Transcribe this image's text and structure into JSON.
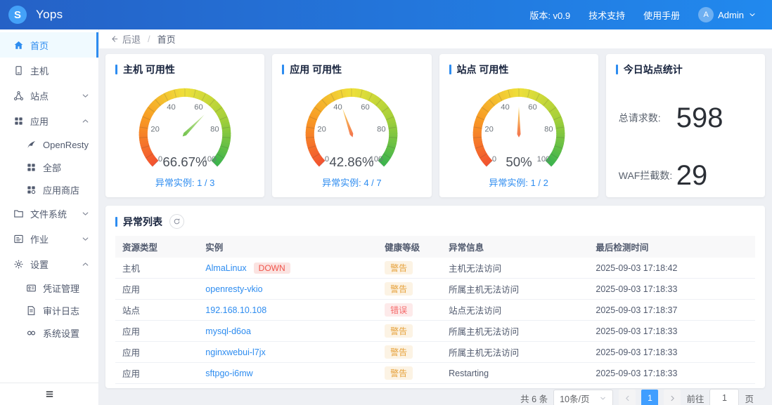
{
  "header": {
    "brand": "Yops",
    "logo_letter": "S",
    "version": "版本: v0.9",
    "support": "技术支持",
    "manual": "使用手册",
    "user": "Admin",
    "avatar_initial": "A",
    "accent_color": "#2d8cf0",
    "topbar_gradient": [
      "#2561c6",
      "#2189ee"
    ]
  },
  "breadcrumb": {
    "back": "后退",
    "separator": "/",
    "current": "首页"
  },
  "sidebar": {
    "items": [
      {
        "id": "home",
        "label": "首页",
        "icon": "home",
        "active": true
      },
      {
        "id": "hosts",
        "label": "主机",
        "icon": "host"
      },
      {
        "id": "sites",
        "label": "站点",
        "icon": "site",
        "expandable": true,
        "expanded": false
      },
      {
        "id": "apps",
        "label": "应用",
        "icon": "apps",
        "expandable": true,
        "expanded": true,
        "children": [
          {
            "id": "openresty",
            "label": "OpenResty",
            "icon": "openresty"
          },
          {
            "id": "apps-all",
            "label": "全部",
            "icon": "grid"
          },
          {
            "id": "app-store",
            "label": "应用商店",
            "icon": "store"
          }
        ]
      },
      {
        "id": "filesystem",
        "label": "文件系统",
        "icon": "files",
        "expandable": true,
        "expanded": false
      },
      {
        "id": "jobs",
        "label": "作业",
        "icon": "jobs",
        "expandable": true,
        "expanded": false
      },
      {
        "id": "settings",
        "label": "设置",
        "icon": "settings",
        "expandable": true,
        "expanded": true,
        "children": [
          {
            "id": "credentials",
            "label": "凭证管理",
            "icon": "credentials"
          },
          {
            "id": "audit-log",
            "label": "审计日志",
            "icon": "audit"
          },
          {
            "id": "system-settings",
            "label": "系统设置",
            "icon": "system"
          }
        ]
      }
    ]
  },
  "chart_data": [
    {
      "type": "gauge",
      "title": "主机 可用性",
      "value": 66.67,
      "display": "66.67%",
      "min": 0,
      "max": 100,
      "tick_labels": [
        0,
        20,
        40,
        60,
        80,
        100
      ],
      "band_gradient": [
        [
          "0",
          "#f25230"
        ],
        [
          "0.25",
          "#f89b24"
        ],
        [
          "0.5",
          "#efe03a"
        ],
        [
          "0.75",
          "#a6d039"
        ],
        [
          "1",
          "#3ab34e"
        ]
      ],
      "needle": [
        "#cde8a0",
        "#6fc24a"
      ],
      "abnormal_label": "异常实例:",
      "abnormal_value": "1 / 3"
    },
    {
      "type": "gauge",
      "title": "应用 可用性",
      "value": 42.86,
      "display": "42.86%",
      "min": 0,
      "max": 100,
      "tick_labels": [
        0,
        20,
        40,
        60,
        80,
        100
      ],
      "band_gradient": [
        [
          "0",
          "#f25230"
        ],
        [
          "0.25",
          "#f89b24"
        ],
        [
          "0.5",
          "#efe03a"
        ],
        [
          "0.75",
          "#a6d039"
        ],
        [
          "1",
          "#3ab34e"
        ]
      ],
      "needle": [
        "#f8d75c",
        "#f3704d"
      ],
      "abnormal_label": "异常实例:",
      "abnormal_value": "4 / 7"
    },
    {
      "type": "gauge",
      "title": "站点 可用性",
      "value": 50,
      "display": "50%",
      "min": 0,
      "max": 100,
      "tick_labels": [
        0,
        20,
        40,
        60,
        80,
        100
      ],
      "band_gradient": [
        [
          "0",
          "#f25230"
        ],
        [
          "0.25",
          "#f89b24"
        ],
        [
          "0.5",
          "#efe03a"
        ],
        [
          "0.75",
          "#a6d039"
        ],
        [
          "1",
          "#3ab34e"
        ]
      ],
      "needle": [
        "#f8d75c",
        "#f3704d"
      ],
      "abnormal_label": "异常实例:",
      "abnormal_value": "1 / 2"
    },
    {
      "type": "stat",
      "title": "今日站点统计",
      "items": [
        {
          "label": "总请求数:",
          "value": "598"
        },
        {
          "label": "WAF拦截数:",
          "value": "29"
        }
      ]
    }
  ],
  "table": {
    "title": "异常列表",
    "columns": [
      "资源类型",
      "实例",
      "健康等级",
      "异常信息",
      "最后检测时间"
    ],
    "column_widths": [
      "13%",
      "28%",
      "10%",
      "23%",
      "26%"
    ],
    "rows": [
      {
        "type": "主机",
        "instance": "AlmaLinux",
        "tag": "DOWN",
        "level": "警告",
        "level_type": "warning",
        "info": "主机无法访问",
        "time": "2025-09-03 17:18:42"
      },
      {
        "type": "应用",
        "instance": "openresty-vkio",
        "level": "警告",
        "level_type": "warning",
        "info": "所属主机无法访问",
        "time": "2025-09-03 17:18:33"
      },
      {
        "type": "站点",
        "instance": "192.168.10.108",
        "level": "错误",
        "level_type": "error",
        "info": "站点无法访问",
        "time": "2025-09-03 17:18:37"
      },
      {
        "type": "应用",
        "instance": "mysql-d6oa",
        "level": "警告",
        "level_type": "warning",
        "info": "所属主机无法访问",
        "time": "2025-09-03 17:18:33"
      },
      {
        "type": "应用",
        "instance": "nginxwebui-l7jx",
        "level": "警告",
        "level_type": "warning",
        "info": "所属主机无法访问",
        "time": "2025-09-03 17:18:33"
      },
      {
        "type": "应用",
        "instance": "sftpgo-i6mw",
        "level": "警告",
        "level_type": "warning",
        "info": "Restarting",
        "time": "2025-09-03 17:18:33"
      }
    ],
    "status_colors": {
      "warning": "#e6a23c",
      "error": "#f56c6c",
      "link": "#2d8cf0"
    }
  },
  "pagination": {
    "total": "共 6 条",
    "page_size": "10条/页",
    "current": "1",
    "goto_label": "前往",
    "goto_value": "1",
    "page_unit": "页"
  }
}
